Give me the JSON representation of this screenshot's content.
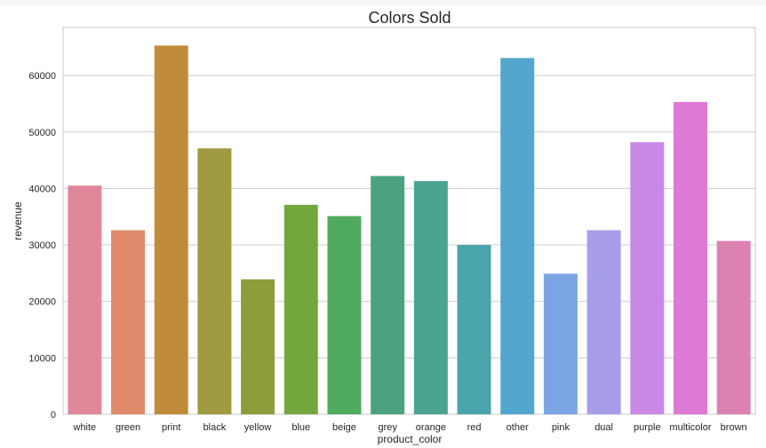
{
  "chart_data": {
    "type": "bar",
    "title": "Colors Sold",
    "xlabel": "product_color",
    "ylabel": "revenue",
    "ylim": [
      0,
      68500
    ],
    "yticks": [
      0,
      10000,
      20000,
      30000,
      40000,
      50000,
      60000
    ],
    "grid": true,
    "categories": [
      "white",
      "green",
      "print",
      "black",
      "yellow",
      "blue",
      "beige",
      "grey",
      "orange",
      "red",
      "other",
      "pink",
      "dual",
      "purple",
      "multicolor",
      "brown"
    ],
    "values": [
      40500,
      32600,
      65300,
      47100,
      23900,
      37100,
      35100,
      42200,
      41300,
      30000,
      63100,
      24900,
      32600,
      48200,
      55300,
      30700
    ],
    "colors": [
      "#e1879a",
      "#e08a6c",
      "#c08c3c",
      "#a09a40",
      "#8f9c3a",
      "#73a73e",
      "#4fab5e",
      "#4aa37e",
      "#4aa48f",
      "#4aa4ac",
      "#53a6ce",
      "#7ba4e4",
      "#a79de8",
      "#c889e6",
      "#dc7ad4",
      "#dc82b2"
    ]
  }
}
